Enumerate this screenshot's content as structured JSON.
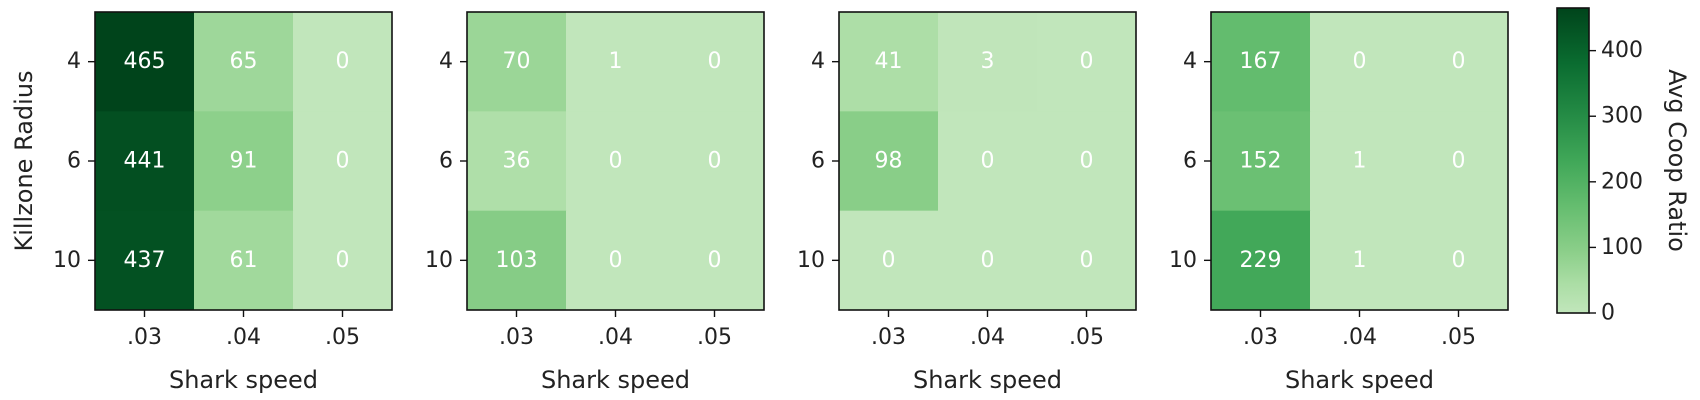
{
  "chart_data": {
    "type": "heatmap",
    "panels": [
      {
        "xlabel": "Shark speed",
        "ylabel": "Killzone Radius",
        "x_categories": [
          ".03",
          ".04",
          ".05"
        ],
        "y_categories": [
          "4",
          "6",
          "10"
        ],
        "values": [
          [
            465,
            65,
            0
          ],
          [
            441,
            91,
            0
          ],
          [
            437,
            61,
            0
          ]
        ],
        "value_labels": [
          [
            "465",
            "65",
            "0"
          ],
          [
            "441",
            "91",
            "0"
          ],
          [
            "437",
            "61",
            "0"
          ]
        ]
      },
      {
        "xlabel": "Shark speed",
        "ylabel": "",
        "x_categories": [
          ".03",
          ".04",
          ".05"
        ],
        "y_categories": [
          "4",
          "6",
          "10"
        ],
        "values": [
          [
            70,
            1,
            0
          ],
          [
            36,
            0,
            0
          ],
          [
            103,
            0,
            0
          ]
        ],
        "value_labels": [
          [
            "70",
            "1",
            "0"
          ],
          [
            "36",
            "0",
            "0"
          ],
          [
            "103",
            "0",
            "0"
          ]
        ]
      },
      {
        "xlabel": "Shark speed",
        "ylabel": "",
        "x_categories": [
          ".03",
          ".04",
          ".05"
        ],
        "y_categories": [
          "4",
          "6",
          "10"
        ],
        "values": [
          [
            41,
            3,
            0
          ],
          [
            98,
            0,
            0
          ],
          [
            0,
            0,
            0
          ]
        ],
        "value_labels": [
          [
            "41",
            "3",
            "0"
          ],
          [
            "98",
            "0",
            "0"
          ],
          [
            "0",
            "0",
            "0"
          ]
        ]
      },
      {
        "xlabel": "Shark speed",
        "ylabel": "",
        "x_categories": [
          ".03",
          ".04",
          ".05"
        ],
        "y_categories": [
          "4",
          "6",
          "10"
        ],
        "values": [
          [
            167,
            0,
            0
          ],
          [
            152,
            1,
            0
          ],
          [
            229,
            1,
            0
          ]
        ],
        "value_labels": [
          [
            "167",
            "0",
            "0"
          ],
          [
            "152",
            "1",
            "0"
          ],
          [
            "229",
            "1",
            "0"
          ]
        ]
      }
    ],
    "colorbar": {
      "label": "Avg Coop Ratio",
      "range": [
        0,
        465
      ],
      "ticks": [
        0,
        100,
        200,
        300,
        400
      ],
      "tick_labels": [
        "0",
        "100",
        "200",
        "300",
        "400"
      ],
      "colormap": "Greens",
      "color_low": "#c1e6bb",
      "color_high": "#00441b"
    },
    "grid": false,
    "legend": "colorbar-right"
  }
}
